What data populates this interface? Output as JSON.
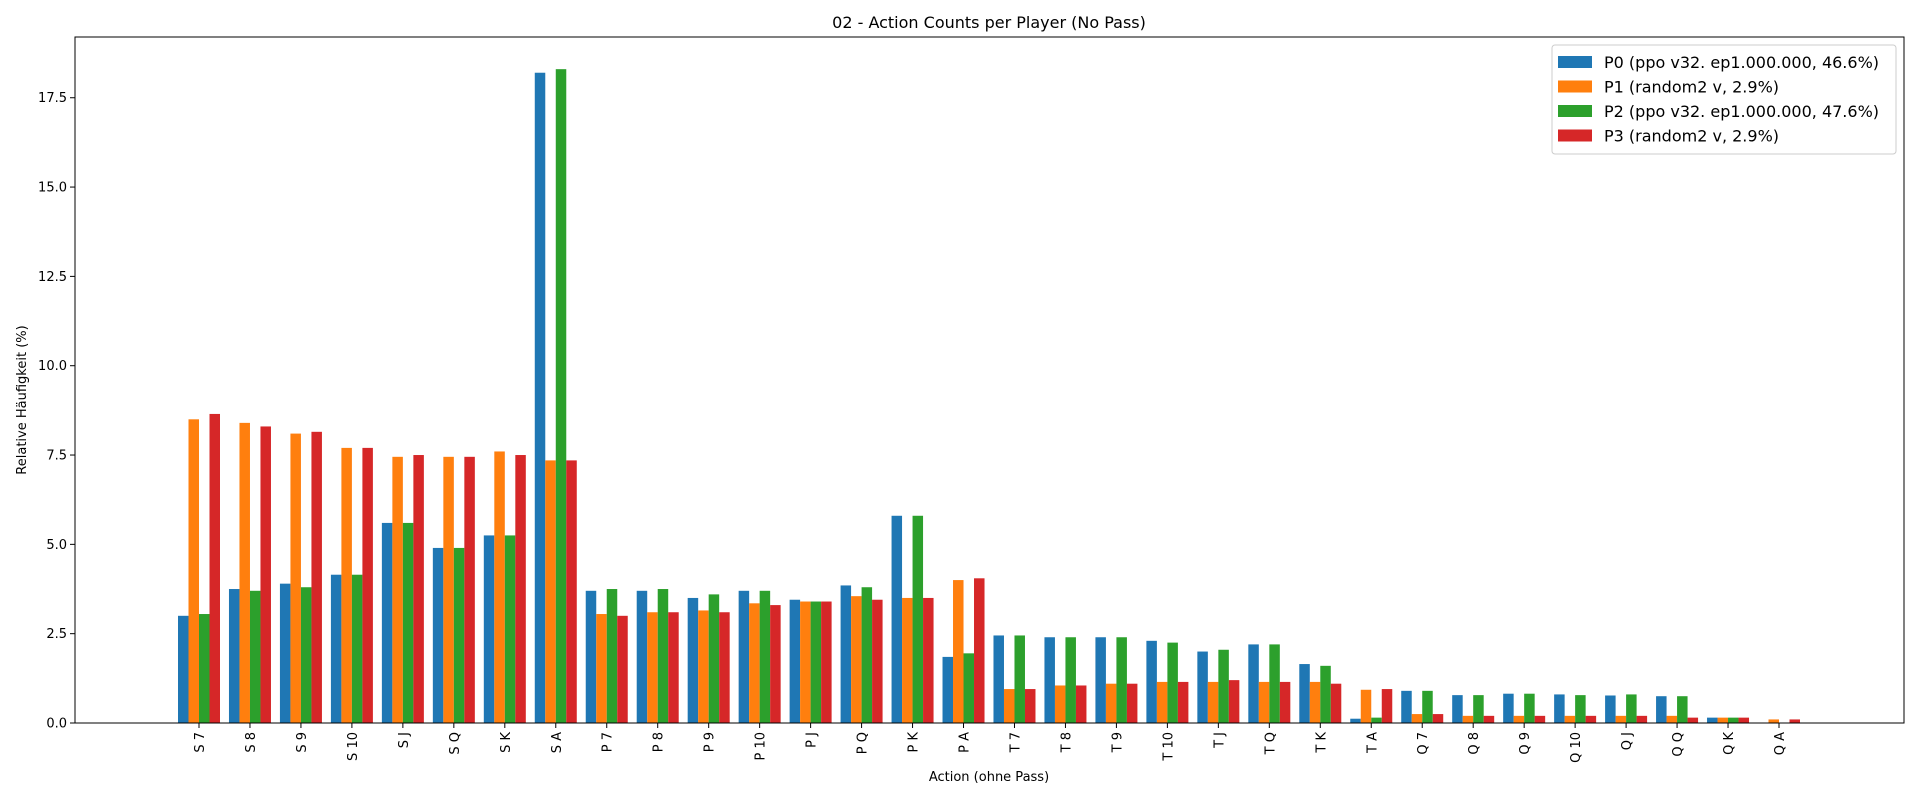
{
  "chart_data": {
    "type": "bar",
    "title": "02 - Action Counts per Player (No Pass)",
    "xlabel": "Action (ohne Pass)",
    "ylabel": "Relative Häufigkeit (%)",
    "ylim": [
      0,
      19.2
    ],
    "yticks": [
      "0.0",
      "2.5",
      "5.0",
      "7.5",
      "10.0",
      "12.5",
      "15.0",
      "17.5"
    ],
    "grid": false,
    "legend_position": "top-right",
    "categories": [
      "S 7",
      "S 8",
      "S 9",
      "S 10",
      "S J",
      "S Q",
      "S K",
      "S A",
      "P 7",
      "P 8",
      "P 9",
      "P 10",
      "P J",
      "P Q",
      "P K",
      "P A",
      "T 7",
      "T 8",
      "T 9",
      "T 10",
      "T J",
      "T Q",
      "T K",
      "T A",
      "Q 7",
      "Q 8",
      "Q 9",
      "Q 10",
      "Q J",
      "Q Q",
      "Q K",
      "Q A"
    ],
    "series": [
      {
        "name": "P0 (ppo v32. ep1.000.000, 46.6%)",
        "color": "#1f77b4",
        "values": [
          3.0,
          3.75,
          3.9,
          4.15,
          5.6,
          4.9,
          5.25,
          18.2,
          3.7,
          3.7,
          3.5,
          3.7,
          3.45,
          3.85,
          5.8,
          1.85,
          2.45,
          2.4,
          2.4,
          2.3,
          2.0,
          2.2,
          1.65,
          0.12,
          0.9,
          0.78,
          0.82,
          0.8,
          0.77,
          0.75,
          0.15,
          0.0
        ]
      },
      {
        "name": "P1 (random2 v, 2.9%)",
        "color": "#ff7f0e",
        "values": [
          8.5,
          8.4,
          8.1,
          7.7,
          7.45,
          7.45,
          7.6,
          7.35,
          3.05,
          3.1,
          3.15,
          3.35,
          3.4,
          3.55,
          3.5,
          4.0,
          0.95,
          1.05,
          1.1,
          1.15,
          1.15,
          1.15,
          1.15,
          0.93,
          0.25,
          0.2,
          0.2,
          0.2,
          0.2,
          0.2,
          0.15,
          0.1
        ]
      },
      {
        "name": "P2 (ppo v32. ep1.000.000, 47.6%)",
        "color": "#2ca02c",
        "values": [
          3.05,
          3.7,
          3.8,
          4.15,
          5.6,
          4.9,
          5.25,
          18.3,
          3.75,
          3.75,
          3.6,
          3.7,
          3.4,
          3.8,
          5.8,
          1.95,
          2.45,
          2.4,
          2.4,
          2.25,
          2.05,
          2.2,
          1.6,
          0.15,
          0.9,
          0.78,
          0.82,
          0.78,
          0.8,
          0.75,
          0.15,
          0.0
        ]
      },
      {
        "name": "P3 (random2 v, 2.9%)",
        "color": "#d62728",
        "values": [
          8.65,
          8.3,
          8.15,
          7.7,
          7.5,
          7.45,
          7.5,
          7.35,
          3.0,
          3.1,
          3.1,
          3.3,
          3.4,
          3.45,
          3.5,
          4.05,
          0.95,
          1.05,
          1.1,
          1.15,
          1.2,
          1.15,
          1.1,
          0.95,
          0.25,
          0.2,
          0.2,
          0.2,
          0.2,
          0.15,
          0.15,
          0.1
        ]
      }
    ]
  }
}
